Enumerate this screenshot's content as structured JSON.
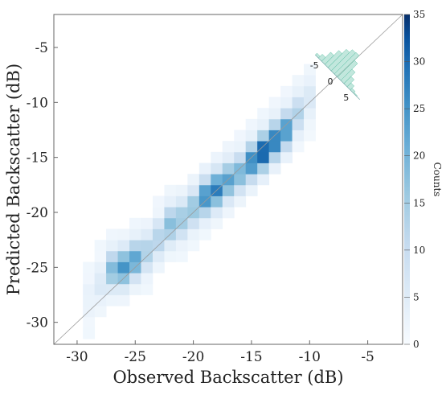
{
  "chart_data": {
    "type": "heatmap",
    "xlabel": "Observed Backscatter (dB)",
    "ylabel": "Predicted Backscatter (dB)",
    "xlim": [
      -32,
      -2
    ],
    "ylim": [
      -32,
      -2
    ],
    "x_ticks": [
      -30,
      -25,
      -20,
      -15,
      -10,
      -5
    ],
    "y_ticks": [
      -30,
      -25,
      -20,
      -15,
      -10,
      -5
    ],
    "bin_size_db": 1,
    "one_to_one_line": true,
    "colorbar": {
      "label": "Counts",
      "range": [
        0,
        35
      ],
      "ticks": [
        0,
        5,
        10,
        15,
        20,
        25,
        30,
        35
      ],
      "color_low": "#f7fbff",
      "color_high": "#08306b"
    },
    "ridge": [
      {
        "x": -29,
        "y": -27.8,
        "peak": 2
      },
      {
        "x": -28,
        "y": -26.5,
        "peak": 5
      },
      {
        "x": -27,
        "y": -25.2,
        "peak": 18
      },
      {
        "x": -26,
        "y": -25.0,
        "peak": 24
      },
      {
        "x": -25,
        "y": -24.3,
        "peak": 22
      },
      {
        "x": -24,
        "y": -23.6,
        "peak": 13
      },
      {
        "x": -23,
        "y": -22.4,
        "peak": 12
      },
      {
        "x": -22,
        "y": -21.1,
        "peak": 17
      },
      {
        "x": -21,
        "y": -20.6,
        "peak": 15
      },
      {
        "x": -20,
        "y": -19.6,
        "peak": 16
      },
      {
        "x": -19,
        "y": -18.6,
        "peak": 25
      },
      {
        "x": -18,
        "y": -17.9,
        "peak": 27
      },
      {
        "x": -17,
        "y": -17.1,
        "peak": 22
      },
      {
        "x": -16,
        "y": -16.4,
        "peak": 19
      },
      {
        "x": -15,
        "y": -15.4,
        "peak": 26
      },
      {
        "x": -14,
        "y": -14.5,
        "peak": 32
      },
      {
        "x": -13,
        "y": -13.5,
        "peak": 28
      },
      {
        "x": -12,
        "y": -12.5,
        "peak": 24
      },
      {
        "x": -11,
        "y": -11.0,
        "peak": 12
      },
      {
        "x": -10,
        "y": -9.6,
        "peak": 5
      }
    ],
    "inset_histogram": {
      "type": "bar",
      "axis": "residual (dB)",
      "tick_labels": [
        "-5",
        "0",
        "5"
      ],
      "bins": [
        -6.5,
        -5.5,
        -4.5,
        -3.5,
        -2.5,
        -1.5,
        -0.5,
        0.5,
        1.5,
        2.5,
        3.5,
        4.5,
        5.5
      ],
      "relative_counts": [
        0.08,
        0.18,
        0.42,
        0.65,
        0.85,
        0.98,
        1.0,
        0.78,
        0.52,
        0.33,
        0.18,
        0.08,
        0.03
      ],
      "color": "#8fd3c1"
    }
  }
}
